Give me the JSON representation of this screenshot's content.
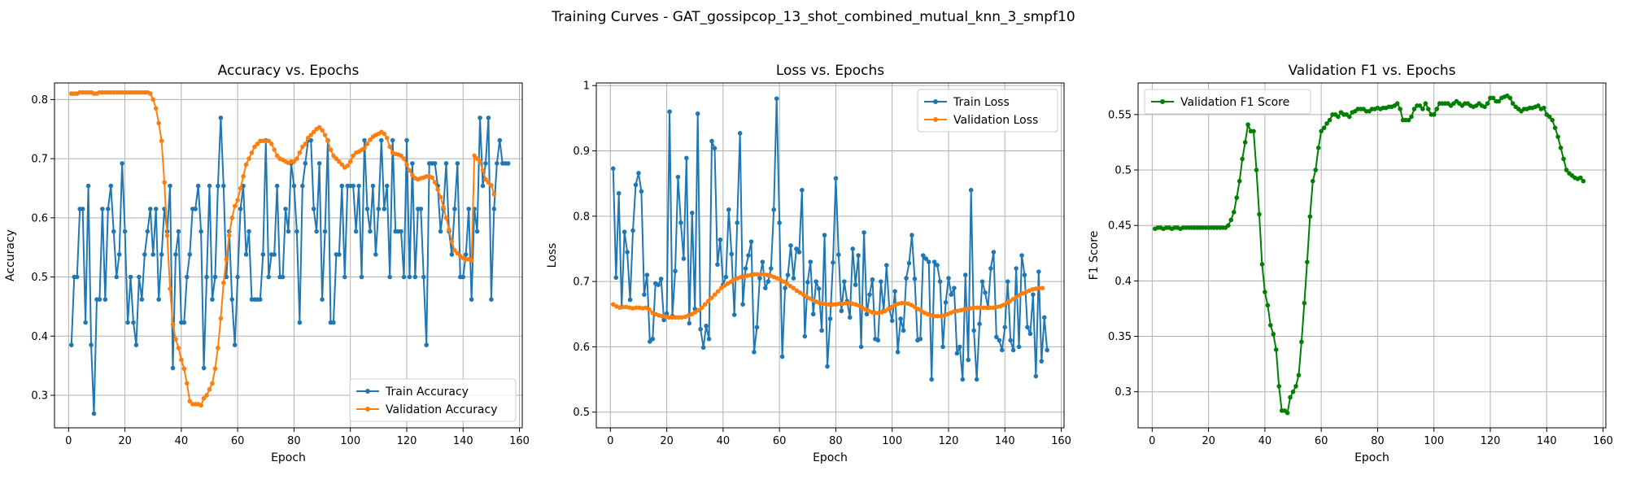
{
  "figure": {
    "title": "Training Curves - GAT_gossipcop_13_shot_combined_mutual_knn_3_smpf10"
  },
  "colors": {
    "train": "#1f77b4",
    "validation": "#ff7f0e",
    "f1": "#008000",
    "grid": "#b0b0b0"
  },
  "chart_data": [
    {
      "type": "line",
      "title": "Accuracy vs. Epochs",
      "xlabel": "Epoch",
      "ylabel": "Accuracy",
      "xlim": [
        -5,
        161
      ],
      "ylim": [
        0.245,
        0.828
      ],
      "xticks": [
        0,
        20,
        40,
        60,
        80,
        100,
        120,
        140,
        160
      ],
      "yticks": [
        0.3,
        0.4,
        0.5,
        0.6,
        0.7,
        0.8
      ],
      "grid": true,
      "legend": "lower-right",
      "series": [
        {
          "name": "Train Accuracy",
          "color": "#1f77b4",
          "values": [
            0.385,
            0.5,
            0.5,
            0.615,
            0.615,
            0.423,
            0.654,
            0.385,
            0.269,
            0.462,
            0.462,
            0.615,
            0.462,
            0.615,
            0.654,
            0.577,
            0.5,
            0.538,
            0.692,
            0.577,
            0.423,
            0.5,
            0.423,
            0.385,
            0.5,
            0.462,
            0.538,
            0.577,
            0.615,
            0.538,
            0.615,
            0.462,
            0.538,
            0.615,
            0.577,
            0.654,
            0.346,
            0.538,
            0.577,
            0.423,
            0.423,
            0.5,
            0.538,
            0.615,
            0.615,
            0.654,
            0.577,
            0.346,
            0.5,
            0.654,
            0.462,
            0.5,
            0.654,
            0.769,
            0.654,
            0.5,
            0.577,
            0.462,
            0.385,
            0.5,
            0.615,
            0.654,
            0.538,
            0.577,
            0.462,
            0.462,
            0.462,
            0.462,
            0.538,
            0.731,
            0.5,
            0.538,
            0.538,
            0.654,
            0.5,
            0.5,
            0.615,
            0.577,
            0.692,
            0.654,
            0.577,
            0.423,
            0.654,
            0.692,
            0.731,
            0.731,
            0.615,
            0.577,
            0.692,
            0.462,
            0.577,
            0.731,
            0.423,
            0.423,
            0.538,
            0.538,
            0.654,
            0.5,
            0.654,
            0.654,
            0.654,
            0.577,
            0.654,
            0.5,
            0.731,
            0.615,
            0.577,
            0.654,
            0.538,
            0.615,
            0.731,
            0.615,
            0.654,
            0.5,
            0.731,
            0.577,
            0.577,
            0.577,
            0.5,
            0.731,
            0.5,
            0.692,
            0.5,
            0.615,
            0.615,
            0.5,
            0.385,
            0.692,
            0.692,
            0.692,
            0.654,
            0.577,
            0.615,
            0.692,
            0.577,
            0.538,
            0.615,
            0.692,
            0.5,
            0.5,
            0.538,
            0.615,
            0.462,
            0.615,
            0.577,
            0.769,
            0.654,
            0.692,
            0.769,
            0.462,
            0.615,
            0.692,
            0.731,
            0.692,
            0.692,
            0.692
          ],
          "x_start": 1
        },
        {
          "name": "Validation Accuracy",
          "color": "#ff7f0e",
          "values": [
            0.81,
            0.81,
            0.81,
            0.812,
            0.812,
            0.812,
            0.812,
            0.812,
            0.81,
            0.81,
            0.812,
            0.812,
            0.812,
            0.812,
            0.812,
            0.812,
            0.812,
            0.812,
            0.812,
            0.812,
            0.812,
            0.812,
            0.812,
            0.812,
            0.812,
            0.812,
            0.812,
            0.812,
            0.81,
            0.8,
            0.785,
            0.76,
            0.73,
            0.66,
            0.57,
            0.48,
            0.42,
            0.395,
            0.38,
            0.36,
            0.345,
            0.32,
            0.29,
            0.285,
            0.285,
            0.285,
            0.283,
            0.295,
            0.3,
            0.31,
            0.32,
            0.345,
            0.38,
            0.43,
            0.49,
            0.53,
            0.57,
            0.6,
            0.62,
            0.63,
            0.65,
            0.67,
            0.69,
            0.7,
            0.71,
            0.72,
            0.725,
            0.73,
            0.73,
            0.73,
            0.73,
            0.725,
            0.715,
            0.705,
            0.7,
            0.698,
            0.695,
            0.693,
            0.695,
            0.695,
            0.7,
            0.71,
            0.72,
            0.725,
            0.735,
            0.74,
            0.745,
            0.75,
            0.753,
            0.748,
            0.74,
            0.73,
            0.715,
            0.705,
            0.7,
            0.695,
            0.69,
            0.685,
            0.688,
            0.695,
            0.705,
            0.71,
            0.712,
            0.715,
            0.718,
            0.725,
            0.732,
            0.737,
            0.74,
            0.742,
            0.745,
            0.742,
            0.735,
            0.72,
            0.71,
            0.708,
            0.707,
            0.705,
            0.7,
            0.69,
            0.68,
            0.672,
            0.667,
            0.665,
            0.667,
            0.668,
            0.67,
            0.67,
            0.668,
            0.66,
            0.648,
            0.635,
            0.618,
            0.6,
            0.58,
            0.56,
            0.545,
            0.54,
            0.535,
            0.532,
            0.53,
            0.53,
            0.528,
            0.705,
            0.7,
            0.695,
            0.68,
            0.665,
            0.66,
            0.655,
            0.64
          ],
          "x_start": 1
        }
      ]
    },
    {
      "type": "line",
      "title": "Loss vs. Epochs",
      "xlabel": "Epoch",
      "ylabel": "Loss",
      "xlim": [
        -5,
        161
      ],
      "ylim": [
        0.476,
        1.004
      ],
      "xticks": [
        0,
        20,
        40,
        60,
        80,
        100,
        120,
        140,
        160
      ],
      "yticks": [
        0.5,
        0.6,
        0.7,
        0.8,
        0.9,
        1.0
      ],
      "grid": true,
      "legend": "top-right",
      "series": [
        {
          "name": "Train Loss",
          "color": "#1f77b4",
          "values": [
            0.873,
            0.706,
            0.835,
            0.661,
            0.776,
            0.745,
            0.672,
            0.778,
            0.848,
            0.866,
            0.838,
            0.68,
            0.71,
            0.608,
            0.612,
            0.697,
            0.695,
            0.704,
            0.641,
            0.651,
            0.96,
            0.647,
            0.716,
            0.86,
            0.79,
            0.735,
            0.889,
            0.636,
            0.805,
            0.658,
            0.957,
            0.627,
            0.599,
            0.632,
            0.612,
            0.915,
            0.904,
            0.726,
            0.764,
            0.695,
            0.707,
            0.81,
            0.742,
            0.649,
            0.79,
            0.927,
            0.665,
            0.72,
            0.74,
            0.761,
            0.592,
            0.63,
            0.705,
            0.73,
            0.69,
            0.7,
            0.72,
            0.81,
            0.98,
            0.79,
            0.585,
            0.69,
            0.71,
            0.755,
            0.705,
            0.75,
            0.745,
            0.84,
            0.616,
            0.699,
            0.73,
            0.65,
            0.7,
            0.689,
            0.625,
            0.771,
            0.57,
            0.643,
            0.729,
            0.858,
            0.741,
            0.655,
            0.7,
            0.67,
            0.645,
            0.75,
            0.695,
            0.74,
            0.6,
            0.775,
            0.65,
            0.68,
            0.703,
            0.612,
            0.61,
            0.7,
            0.655,
            0.725,
            0.658,
            0.64,
            0.685,
            0.592,
            0.643,
            0.625,
            0.705,
            0.728,
            0.771,
            0.704,
            0.61,
            0.612,
            0.74,
            0.735,
            0.73,
            0.55,
            0.73,
            0.725,
            0.7,
            0.6,
            0.668,
            0.705,
            0.68,
            0.69,
            0.59,
            0.6,
            0.55,
            0.71,
            0.58,
            0.84,
            0.625,
            0.55,
            0.635,
            0.7,
            0.683,
            0.66,
            0.72,
            0.745,
            0.615,
            0.61,
            0.595,
            0.63,
            0.7,
            0.61,
            0.595,
            0.72,
            0.6,
            0.74,
            0.71,
            0.63,
            0.62,
            0.68,
            0.555,
            0.715,
            0.578,
            0.645,
            0.595
          ],
          "x_start": 1
        },
        {
          "name": "Validation Loss",
          "color": "#ff7f0e",
          "values": [
            0.665,
            0.662,
            0.66,
            0.661,
            0.661,
            0.66,
            0.659,
            0.66,
            0.66,
            0.659,
            0.66,
            0.657,
            0.652,
            0.65,
            0.648,
            0.647,
            0.646,
            0.645,
            0.645,
            0.645,
            0.645,
            0.645,
            0.646,
            0.648,
            0.65,
            0.653,
            0.656,
            0.66,
            0.665,
            0.67,
            0.675,
            0.68,
            0.685,
            0.69,
            0.694,
            0.697,
            0.7,
            0.703,
            0.705,
            0.707,
            0.708,
            0.709,
            0.71,
            0.711,
            0.711,
            0.711,
            0.711,
            0.71,
            0.709,
            0.707,
            0.705,
            0.703,
            0.7,
            0.697,
            0.693,
            0.69,
            0.686,
            0.683,
            0.68,
            0.677,
            0.674,
            0.671,
            0.669,
            0.667,
            0.666,
            0.665,
            0.665,
            0.665,
            0.665,
            0.666,
            0.666,
            0.667,
            0.667,
            0.666,
            0.665,
            0.663,
            0.66,
            0.657,
            0.655,
            0.653,
            0.652,
            0.652,
            0.653,
            0.655,
            0.658,
            0.661,
            0.664,
            0.666,
            0.667,
            0.667,
            0.666,
            0.664,
            0.661,
            0.658,
            0.655,
            0.652,
            0.65,
            0.648,
            0.647,
            0.647,
            0.647,
            0.648,
            0.65,
            0.652,
            0.654,
            0.655,
            0.656,
            0.657,
            0.658,
            0.659,
            0.66,
            0.66,
            0.66,
            0.66,
            0.66,
            0.66,
            0.66,
            0.661,
            0.662,
            0.664,
            0.667,
            0.67,
            0.673,
            0.676,
            0.679,
            0.682,
            0.684,
            0.686,
            0.688,
            0.689,
            0.69,
            0.69
          ],
          "x_start": 1,
          "x_step": 1.163
        }
      ]
    },
    {
      "type": "line",
      "title": "Validation F1 vs. Epochs",
      "xlabel": "Epoch",
      "ylabel": "F1 Score",
      "xlim": [
        -5,
        161
      ],
      "ylim": [
        0.2675,
        0.5785
      ],
      "xticks": [
        0,
        20,
        40,
        60,
        80,
        100,
        120,
        140,
        160
      ],
      "yticks": [
        0.3,
        0.35,
        0.4,
        0.45,
        0.5,
        0.55
      ],
      "grid": true,
      "legend": "top-left",
      "series": [
        {
          "name": "Validation F1 Score",
          "color": "#008000",
          "values": [
            0.447,
            0.448,
            0.448,
            0.447,
            0.448,
            0.448,
            0.447,
            0.448,
            0.448,
            0.447,
            0.448,
            0.448,
            0.448,
            0.448,
            0.448,
            0.448,
            0.448,
            0.448,
            0.448,
            0.448,
            0.448,
            0.448,
            0.448,
            0.448,
            0.448,
            0.448,
            0.45,
            0.455,
            0.462,
            0.475,
            0.49,
            0.51,
            0.525,
            0.541,
            0.535,
            0.535,
            0.5,
            0.46,
            0.415,
            0.39,
            0.378,
            0.36,
            0.352,
            0.338,
            0.305,
            0.283,
            0.283,
            0.281,
            0.295,
            0.3,
            0.305,
            0.315,
            0.345,
            0.38,
            0.417,
            0.458,
            0.49,
            0.5,
            0.52,
            0.535,
            0.538,
            0.542,
            0.545,
            0.55,
            0.55,
            0.548,
            0.552,
            0.55,
            0.55,
            0.548,
            0.552,
            0.553,
            0.555,
            0.555,
            0.555,
            0.553,
            0.553,
            0.555,
            0.555,
            0.556,
            0.555,
            0.556,
            0.556,
            0.557,
            0.557,
            0.558,
            0.56,
            0.555,
            0.545,
            0.545,
            0.545,
            0.548,
            0.555,
            0.558,
            0.558,
            0.555,
            0.56,
            0.555,
            0.55,
            0.55,
            0.555,
            0.56,
            0.56,
            0.56,
            0.56,
            0.558,
            0.56,
            0.562,
            0.56,
            0.558,
            0.56,
            0.56,
            0.558,
            0.557,
            0.558,
            0.56,
            0.558,
            0.557,
            0.56,
            0.565,
            0.565,
            0.562,
            0.562,
            0.565,
            0.566,
            0.567,
            0.565,
            0.56,
            0.557,
            0.555,
            0.553,
            0.555,
            0.555,
            0.556,
            0.556,
            0.557,
            0.558,
            0.555,
            0.556,
            0.55,
            0.548,
            0.545,
            0.538,
            0.53,
            0.52,
            0.51,
            0.5,
            0.497,
            0.495,
            0.493,
            0.492,
            0.493,
            0.49
          ],
          "x_start": 1
        }
      ]
    }
  ]
}
